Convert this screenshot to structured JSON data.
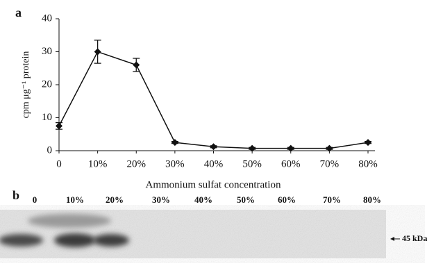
{
  "chart_data": {
    "type": "line",
    "panel_label": "a",
    "x_label": "Ammonium sulfat concentration",
    "y_label": "cpm μg⁻¹ protein",
    "categories": [
      "0",
      "10%",
      "20%",
      "30%",
      "40%",
      "50%",
      "60%",
      "70%",
      "80%"
    ],
    "values": [
      7.5,
      30,
      26,
      2.5,
      1.2,
      0.7,
      0.7,
      0.7,
      2.5
    ],
    "errors": [
      1,
      3.5,
      2,
      0.3,
      0.3,
      0.3,
      0.3,
      0.3,
      0.3
    ],
    "color": "#111111",
    "ylim": [
      0,
      40
    ],
    "yticks": [
      0,
      10,
      20,
      30,
      40
    ]
  },
  "gel": {
    "panel_label": "b",
    "lanes": [
      "0",
      "10%",
      "20%",
      "30%",
      "40%",
      "50%",
      "60%",
      "70%",
      "80%"
    ],
    "marker": "45 kDa"
  }
}
